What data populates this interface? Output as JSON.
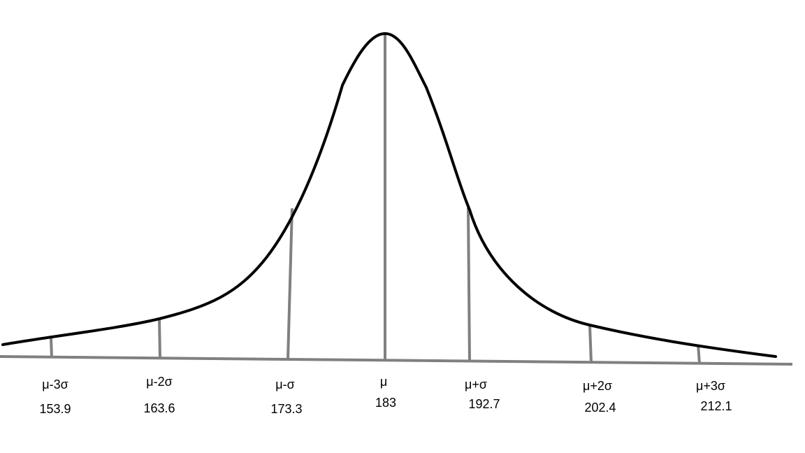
{
  "colors": {
    "background": "#ffffff",
    "curve": "#000000",
    "axis": "#808080",
    "tick": "#808080",
    "text": "#000000"
  },
  "markers": [
    {
      "symbol": "μ-3σ",
      "value": "153.9"
    },
    {
      "symbol": "μ-2σ",
      "value": "163.6"
    },
    {
      "symbol": "μ-σ",
      "value": "173.3"
    },
    {
      "symbol": "μ",
      "value": "183"
    },
    {
      "symbol": "μ+σ",
      "value": "192.7"
    },
    {
      "symbol": "μ+2σ",
      "value": "202.4"
    },
    {
      "symbol": "μ+3σ",
      "value": "212.1"
    }
  ]
}
